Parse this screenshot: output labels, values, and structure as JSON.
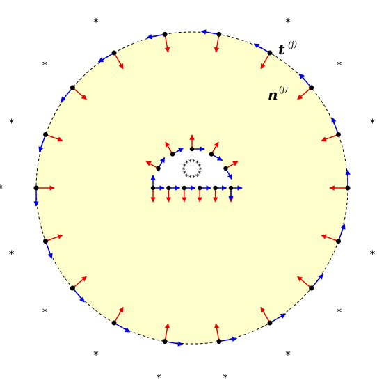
{
  "labels": {
    "tangent": {
      "symbol": "t",
      "superscript": "(j)"
    },
    "normal": {
      "symbol": "n",
      "superscript": "(j)"
    }
  },
  "colors": {
    "domain_fill": "#ffffcc",
    "boundary_stroke": "#000000",
    "tangent_arrow": "#0000ee",
    "normal_arrow": "#ee0000",
    "node": "#000000",
    "source_star": "#000000"
  },
  "icons": {
    "external_source": "asterisk",
    "internal_source": "asterisk"
  }
}
